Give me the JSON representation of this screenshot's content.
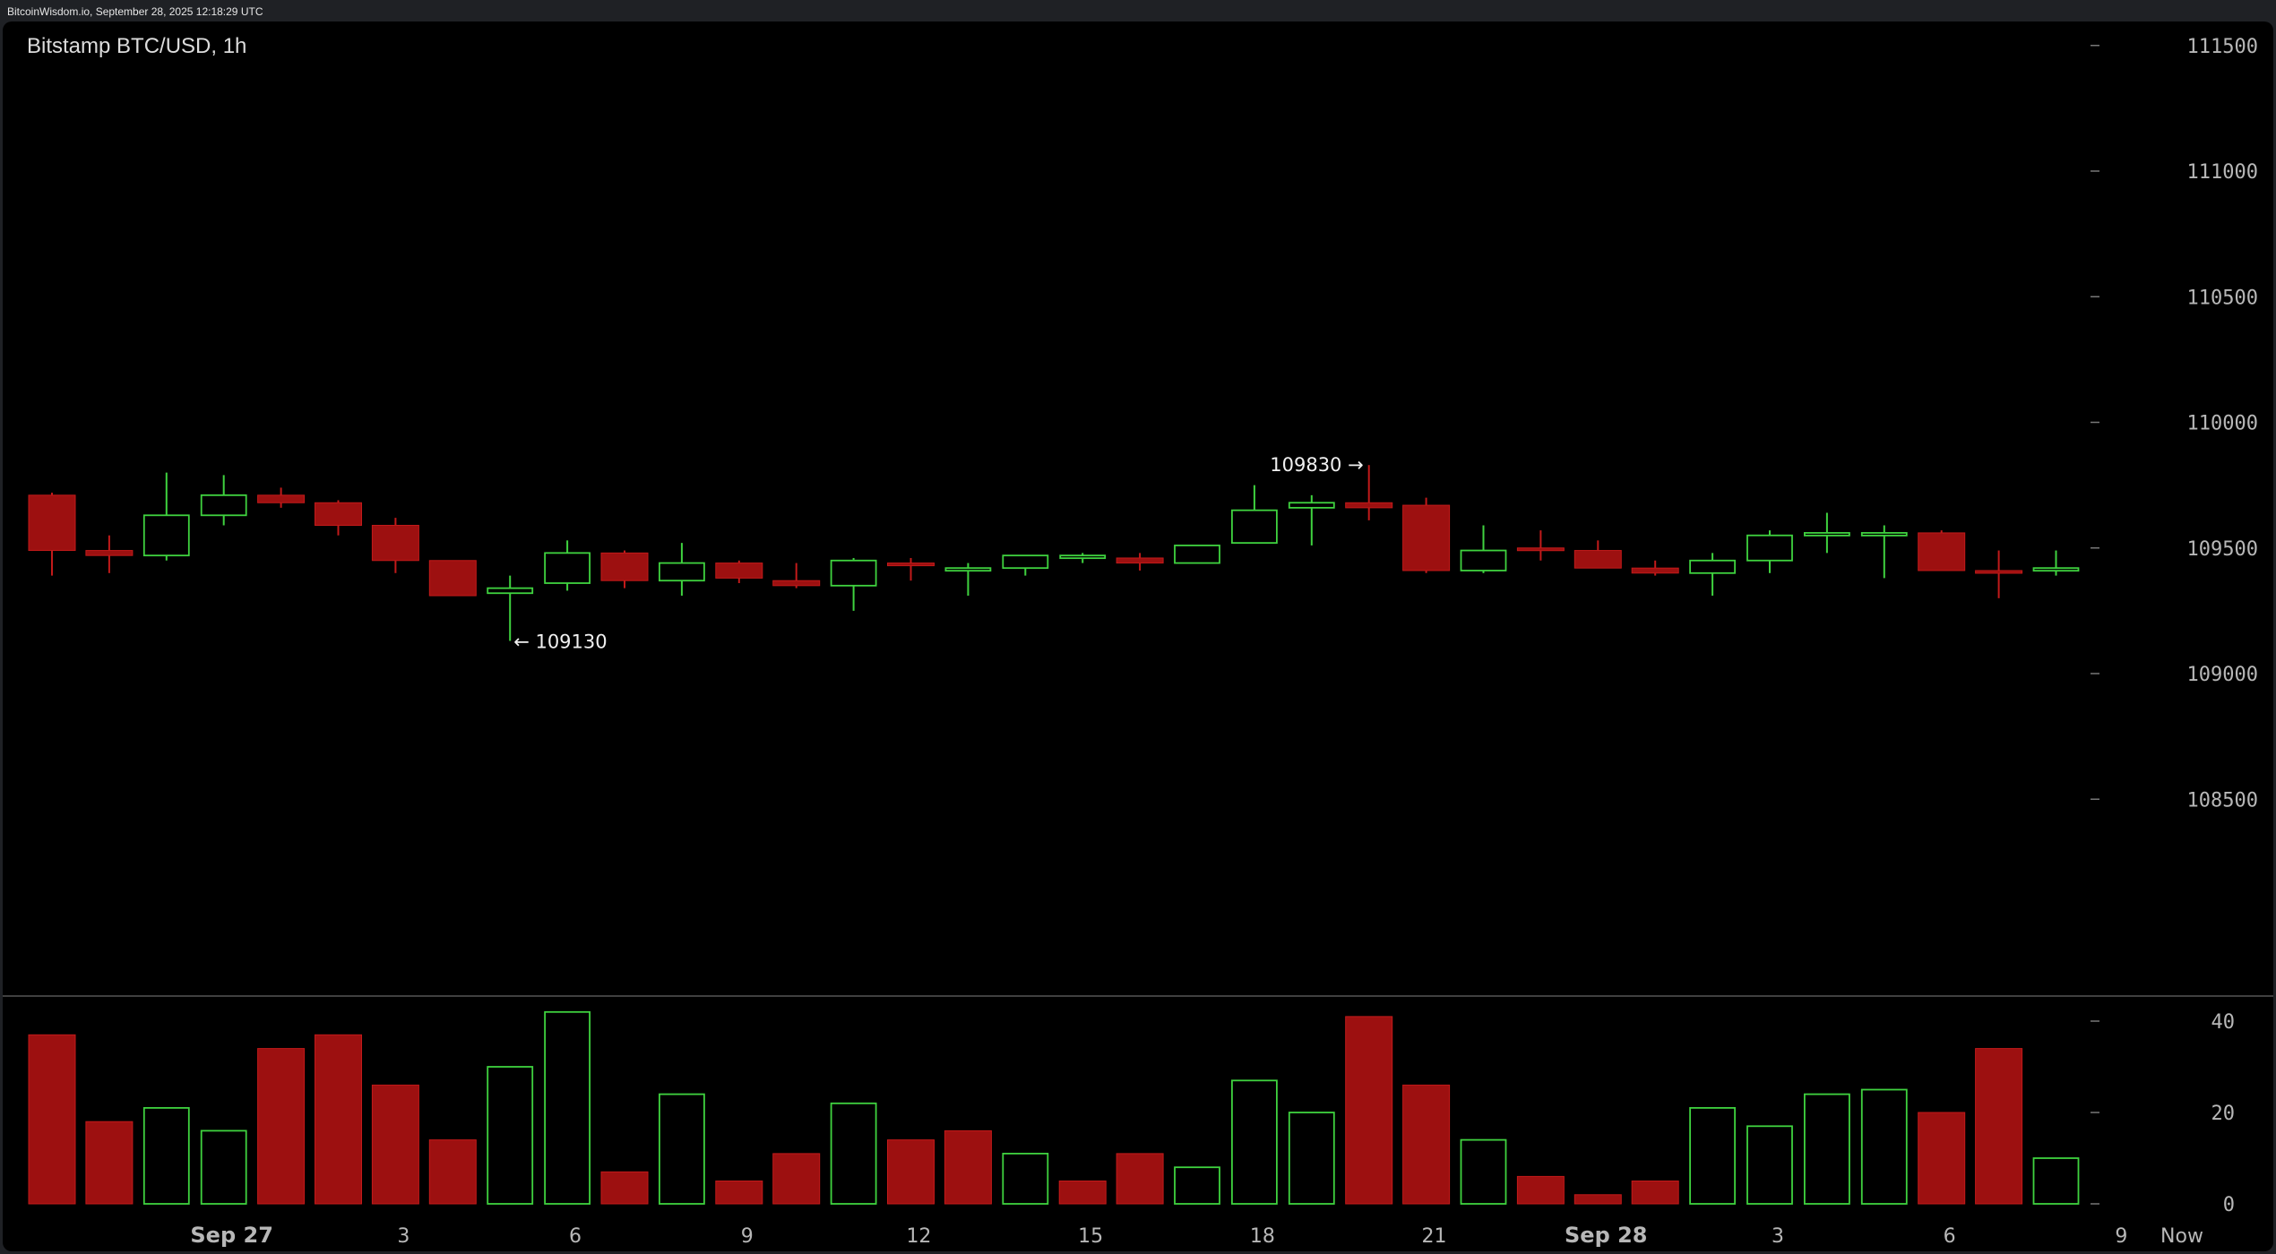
{
  "header": {
    "source_line": "BitcoinWisdom.io, September 28, 2025 12:18:29 UTC"
  },
  "chart_title": "Bitstamp BTC/USD, 1h",
  "colors": {
    "up": "#3fd23f",
    "down": "#9d1010",
    "down_edge": "#c21a1a",
    "grid": "#444444",
    "text": "#b7b7b7",
    "background": "#000000"
  },
  "chart_data": [
    {
      "type": "candlestick",
      "title": "Bitstamp BTC/USD, 1h",
      "ylim": [
        108000,
        111700
      ],
      "y_ticks": [
        "111500",
        "111000",
        "110500",
        "110000",
        "109500",
        "109000",
        "108500"
      ],
      "x_labels": [
        {
          "index": 3.5,
          "label": "Sep 27",
          "bold": true
        },
        {
          "index": 6.5,
          "label": "3",
          "bold": false
        },
        {
          "index": 9.5,
          "label": "6",
          "bold": false
        },
        {
          "index": 12.5,
          "label": "9",
          "bold": false
        },
        {
          "index": 15.5,
          "label": "12",
          "bold": false
        },
        {
          "index": 18.5,
          "label": "15",
          "bold": false
        },
        {
          "index": 21.5,
          "label": "18",
          "bold": false
        },
        {
          "index": 24.5,
          "label": "21",
          "bold": false
        },
        {
          "index": 27.5,
          "label": "Sep 28",
          "bold": true
        },
        {
          "index": 30.5,
          "label": "3",
          "bold": false
        },
        {
          "index": 33.5,
          "label": "6",
          "bold": false
        },
        {
          "index": 36.5,
          "label": "9",
          "bold": false
        },
        {
          "index": 37.5,
          "label": "Now",
          "bold": false
        }
      ],
      "candles": [
        {
          "o": 109710,
          "h": 109720,
          "l": 109390,
          "c": 109490
        },
        {
          "o": 109490,
          "h": 109550,
          "l": 109400,
          "c": 109470
        },
        {
          "o": 109470,
          "h": 109800,
          "l": 109450,
          "c": 109630
        },
        {
          "o": 109630,
          "h": 109790,
          "l": 109590,
          "c": 109710
        },
        {
          "o": 109710,
          "h": 109740,
          "l": 109660,
          "c": 109680
        },
        {
          "o": 109680,
          "h": 109690,
          "l": 109550,
          "c": 109590
        },
        {
          "o": 109590,
          "h": 109620,
          "l": 109400,
          "c": 109450
        },
        {
          "o": 109450,
          "h": 109450,
          "l": 109310,
          "c": 109310
        },
        {
          "o": 109320,
          "h": 109390,
          "l": 109130,
          "c": 109340
        },
        {
          "o": 109360,
          "h": 109530,
          "l": 109330,
          "c": 109480
        },
        {
          "o": 109480,
          "h": 109490,
          "l": 109340,
          "c": 109370
        },
        {
          "o": 109370,
          "h": 109520,
          "l": 109310,
          "c": 109440
        },
        {
          "o": 109440,
          "h": 109450,
          "l": 109360,
          "c": 109380
        },
        {
          "o": 109370,
          "h": 109440,
          "l": 109340,
          "c": 109350
        },
        {
          "o": 109350,
          "h": 109460,
          "l": 109250,
          "c": 109450
        },
        {
          "o": 109440,
          "h": 109460,
          "l": 109370,
          "c": 109430
        },
        {
          "o": 109420,
          "h": 109440,
          "l": 109310,
          "c": 109420
        },
        {
          "o": 109420,
          "h": 109470,
          "l": 109390,
          "c": 109470
        },
        {
          "o": 109470,
          "h": 109480,
          "l": 109440,
          "c": 109470
        },
        {
          "o": 109460,
          "h": 109480,
          "l": 109410,
          "c": 109440
        },
        {
          "o": 109440,
          "h": 109510,
          "l": 109440,
          "c": 109510
        },
        {
          "o": 109520,
          "h": 109750,
          "l": 109520,
          "c": 109650
        },
        {
          "o": 109660,
          "h": 109710,
          "l": 109510,
          "c": 109680
        },
        {
          "o": 109680,
          "h": 109830,
          "l": 109610,
          "c": 109660
        },
        {
          "o": 109670,
          "h": 109700,
          "l": 109400,
          "c": 109410
        },
        {
          "o": 109410,
          "h": 109590,
          "l": 109400,
          "c": 109490
        },
        {
          "o": 109500,
          "h": 109570,
          "l": 109450,
          "c": 109490
        },
        {
          "o": 109490,
          "h": 109530,
          "l": 109420,
          "c": 109420
        },
        {
          "o": 109420,
          "h": 109450,
          "l": 109390,
          "c": 109400
        },
        {
          "o": 109400,
          "h": 109480,
          "l": 109310,
          "c": 109450
        },
        {
          "o": 109450,
          "h": 109570,
          "l": 109400,
          "c": 109550
        },
        {
          "o": 109550,
          "h": 109640,
          "l": 109480,
          "c": 109560
        },
        {
          "o": 109560,
          "h": 109590,
          "l": 109380,
          "c": 109560
        },
        {
          "o": 109560,
          "h": 109570,
          "l": 109410,
          "c": 109410
        },
        {
          "o": 109410,
          "h": 109490,
          "l": 109300,
          "c": 109400
        },
        {
          "o": 109410,
          "h": 109490,
          "l": 109390,
          "c": 109420
        }
      ],
      "annotations": [
        {
          "text": "109830 →",
          "index": 23,
          "price": 109830,
          "side": "left"
        },
        {
          "text": "← 109130",
          "index": 8,
          "price": 109130,
          "side": "right"
        }
      ]
    },
    {
      "type": "bar",
      "title": "",
      "ylim": [
        0,
        44
      ],
      "y_ticks": [
        "40",
        "20",
        "0"
      ],
      "values": [
        37,
        18,
        21,
        16,
        34,
        37,
        26,
        14,
        30,
        42,
        7,
        24,
        5,
        11,
        22,
        14,
        16,
        11,
        5,
        11,
        8,
        27,
        20,
        41,
        26,
        14,
        6,
        2,
        5,
        21,
        17,
        24,
        25,
        20,
        34,
        10
      ],
      "directions": [
        "down",
        "down",
        "up",
        "up",
        "down",
        "down",
        "down",
        "down",
        "up",
        "up",
        "down",
        "up",
        "down",
        "down",
        "up",
        "down",
        "down",
        "up",
        "down",
        "down",
        "up",
        "up",
        "up",
        "down",
        "down",
        "up",
        "down",
        "down",
        "down",
        "up",
        "up",
        "up",
        "up",
        "down",
        "down",
        "up"
      ]
    }
  ]
}
